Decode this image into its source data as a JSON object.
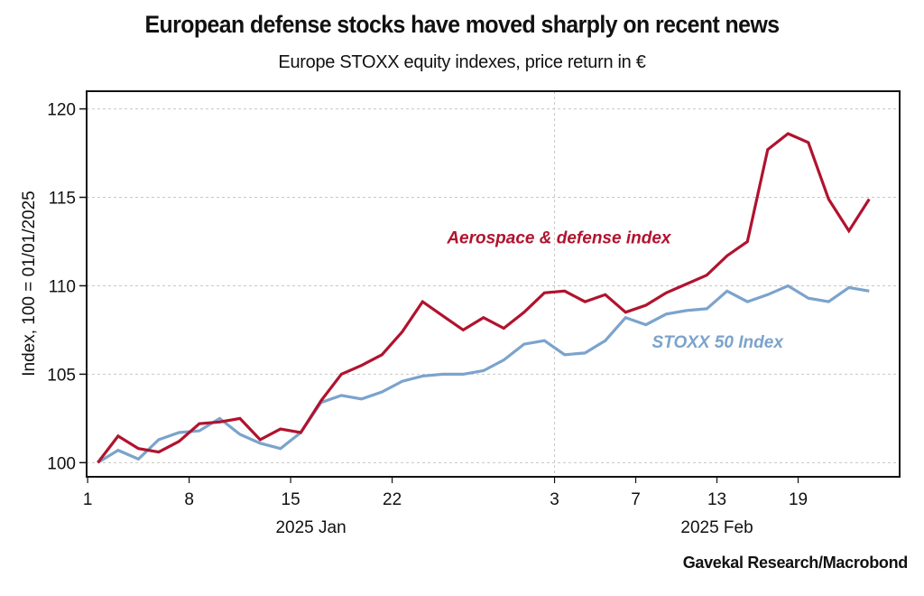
{
  "header": {
    "title": "European defense stocks have moved sharply on recent news",
    "subtitle": "Europe STOXX equity indexes, price return in €"
  },
  "footer": {
    "source": "Gavekal Research/Macrobond"
  },
  "colors": {
    "aerospace": "#b0132e",
    "stoxx50": "#7ba3cc",
    "grid": "#c8c8c8",
    "axis": "#111111"
  },
  "chart_data": {
    "type": "line",
    "title": "European defense stocks have moved sharply on recent news",
    "subtitle": "Europe STOXX equity indexes, price return in €",
    "xlabel": "",
    "ylabel": "Index, 100 = 01/01/2025",
    "ylim": [
      99.2,
      121.0
    ],
    "yticks": [
      100,
      105,
      110,
      115,
      120
    ],
    "grid": true,
    "x": [
      "2025-01-02",
      "2025-01-03",
      "2025-01-06",
      "2025-01-07",
      "2025-01-08",
      "2025-01-09",
      "2025-01-10",
      "2025-01-13",
      "2025-01-14",
      "2025-01-15",
      "2025-01-16",
      "2025-01-17",
      "2025-01-20",
      "2025-01-21",
      "2025-01-22",
      "2025-01-23",
      "2025-01-24",
      "2025-01-27",
      "2025-01-28",
      "2025-01-29",
      "2025-01-30",
      "2025-01-31",
      "2025-02-03",
      "2025-02-04",
      "2025-02-05",
      "2025-02-06",
      "2025-02-07",
      "2025-02-10",
      "2025-02-11",
      "2025-02-12",
      "2025-02-13",
      "2025-02-14",
      "2025-02-17",
      "2025-02-18",
      "2025-02-19",
      "2025-02-20",
      "2025-02-21",
      "2025-02-24",
      "2025-02-25"
    ],
    "xticks": [
      {
        "label": "1",
        "index": -0.5
      },
      {
        "label": "8",
        "index": 4.5
      },
      {
        "label": "15",
        "index": 9.5
      },
      {
        "label": "22",
        "index": 14.5
      },
      {
        "label": "3",
        "index": 22.5,
        "month_boundary": true
      },
      {
        "label": "7",
        "index": 26.5
      },
      {
        "label": "13",
        "index": 30.5
      },
      {
        "label": "19",
        "index": 34.5
      }
    ],
    "xlim_index": [
      -0.55,
      39.5
    ],
    "month_labels": [
      {
        "label": "2025 Jan",
        "index": 10.5
      },
      {
        "label": "2025 Feb",
        "index": 30.5
      }
    ],
    "series": [
      {
        "name": "Aerospace & defense index",
        "color": "#b0132e",
        "values": [
          100.0,
          101.5,
          100.8,
          100.6,
          101.2,
          102.2,
          102.3,
          102.5,
          101.3,
          101.9,
          101.7,
          103.5,
          105.0,
          105.5,
          106.1,
          107.4,
          109.1,
          108.3,
          107.5,
          108.2,
          107.6,
          108.5,
          109.6,
          109.7,
          109.1,
          109.5,
          108.5,
          108.9,
          109.6,
          110.1,
          110.6,
          111.7,
          112.5,
          117.7,
          118.6,
          118.1,
          114.9,
          113.1,
          114.9
        ],
        "label_anchor": {
          "index": 17.2,
          "value": 112.4
        }
      },
      {
        "name": "STOXX 50 Index",
        "color": "#7ba3cc",
        "values": [
          100.0,
          100.7,
          100.2,
          101.3,
          101.7,
          101.8,
          102.5,
          101.6,
          101.1,
          100.8,
          101.7,
          103.4,
          103.8,
          103.6,
          104.0,
          104.6,
          104.9,
          105.0,
          105.0,
          105.2,
          105.8,
          106.7,
          106.9,
          106.1,
          106.2,
          106.9,
          108.2,
          107.8,
          108.4,
          108.6,
          108.7,
          109.7,
          109.1,
          109.5,
          110.0,
          109.3,
          109.1,
          109.9,
          109.7
        ],
        "label_anchor": {
          "index": 27.3,
          "value": 106.5
        }
      }
    ],
    "legend": "inline-labels"
  }
}
